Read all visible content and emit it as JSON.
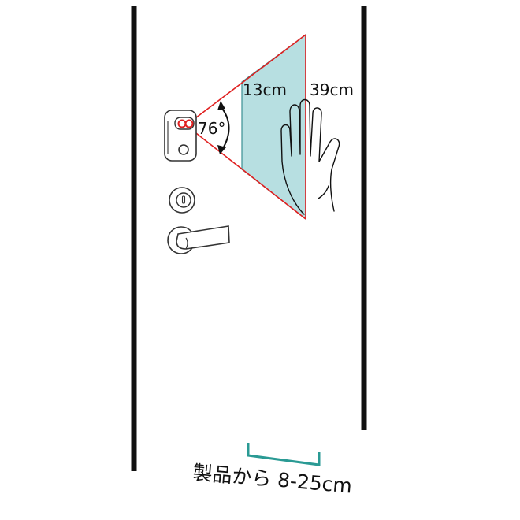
{
  "labels": {
    "near_distance": "13cm",
    "far_distance": "39cm",
    "angle": "76°",
    "range_caption": "製品から 8-25cm"
  },
  "colors": {
    "beam_line": "#e02020",
    "beam_fill": "#b7dfe1",
    "bracket": "#2a9a94",
    "door_edge": "#111111",
    "outline": "#333333"
  },
  "icons": {
    "device": "doorbell-sensor-icon",
    "deadbolt": "deadbolt-lock-icon",
    "handle": "lever-handle-icon",
    "hand": "hand-icon"
  }
}
